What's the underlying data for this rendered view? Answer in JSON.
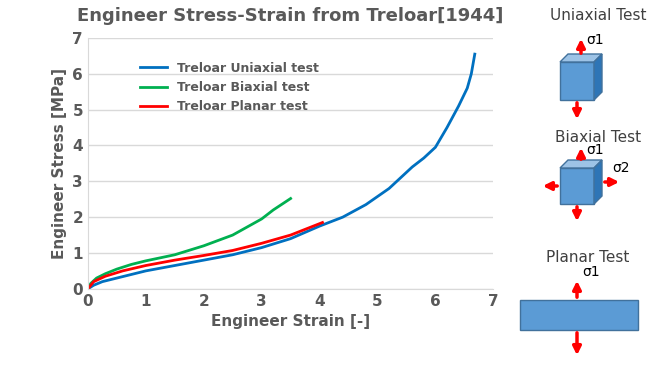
{
  "chart_data": {
    "type": "line",
    "title": "Engineer Stress-Strain from Treloar[1944]",
    "x_label": "Engineer Strain [-]",
    "y_label": "Engineer Stress [MPa]",
    "xlim": [
      0,
      7
    ],
    "xticks": [
      0,
      1,
      2,
      3,
      4,
      5,
      6,
      7
    ],
    "ylim": [
      0,
      7
    ],
    "yticks": [
      0,
      1,
      2,
      3,
      4,
      5,
      6,
      7
    ],
    "grid": true,
    "legend": "upper left",
    "series": [
      {
        "name": "Treloar Uniaxial test",
        "color": "#0070c0",
        "x": [
          0,
          0.1,
          0.25,
          0.5,
          0.75,
          1.0,
          1.5,
          2.0,
          2.5,
          3.0,
          3.5,
          4.0,
          4.4,
          4.8,
          5.2,
          5.6,
          5.8,
          6.0,
          6.2,
          6.4,
          6.55,
          6.62,
          6.68
        ],
        "values": [
          0,
          0.1,
          0.2,
          0.3,
          0.4,
          0.5,
          0.65,
          0.8,
          0.95,
          1.15,
          1.4,
          1.75,
          2.0,
          2.35,
          2.8,
          3.4,
          3.65,
          3.95,
          4.5,
          5.1,
          5.6,
          6.0,
          6.55
        ]
      },
      {
        "name": "Treloar Biaxial test",
        "color": "#00b050",
        "x": [
          0,
          0.05,
          0.15,
          0.3,
          0.5,
          0.75,
          1.0,
          1.5,
          2.0,
          2.5,
          3.0,
          3.2,
          3.5
        ],
        "values": [
          0,
          0.15,
          0.3,
          0.42,
          0.55,
          0.68,
          0.78,
          0.95,
          1.2,
          1.5,
          1.95,
          2.2,
          2.52
        ]
      },
      {
        "name": "Treloar Planar test",
        "color": "#ff0000",
        "x": [
          0,
          0.1,
          0.3,
          0.6,
          1.0,
          1.5,
          2.0,
          2.5,
          3.0,
          3.5,
          4.05
        ],
        "values": [
          0,
          0.2,
          0.35,
          0.5,
          0.65,
          0.8,
          0.93,
          1.07,
          1.27,
          1.5,
          1.85
        ]
      }
    ]
  },
  "diagram": {
    "panels": [
      {
        "title": "Uniaxial Test",
        "stresses": [
          "σ1"
        ]
      },
      {
        "title": "Biaxial Test",
        "stresses": [
          "σ1",
          "σ2"
        ]
      },
      {
        "title": "Planar Test",
        "stresses": [
          "σ1"
        ]
      }
    ]
  }
}
